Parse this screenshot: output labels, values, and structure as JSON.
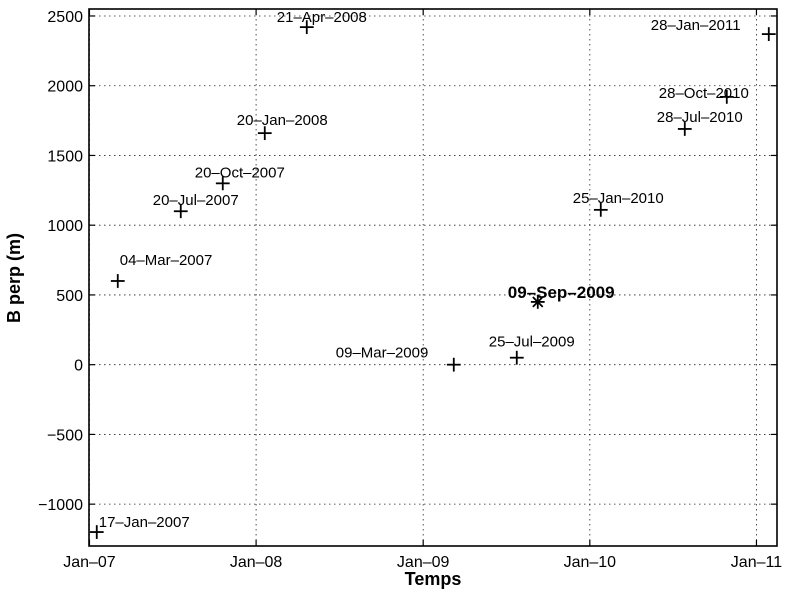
{
  "chart_data": {
    "type": "scatter",
    "title": "",
    "xlabel": "Temps",
    "ylabel": "B perp (m)",
    "xlim": [
      "2006-12-31",
      "2011-02-15"
    ],
    "ylim": [
      -1300,
      2550
    ],
    "grid": true,
    "x_ticks": [
      {
        "value": "2007-01-01",
        "label": "Jan–07"
      },
      {
        "value": "2008-01-01",
        "label": "Jan–08"
      },
      {
        "value": "2009-01-01",
        "label": "Jan–09"
      },
      {
        "value": "2010-01-01",
        "label": "Jan–10"
      },
      {
        "value": "2011-01-01",
        "label": "Jan–11"
      }
    ],
    "y_ticks": [
      {
        "value": -1000,
        "label": "−1000"
      },
      {
        "value": -500,
        "label": "−500"
      },
      {
        "value": 0,
        "label": "0"
      },
      {
        "value": 500,
        "label": "500"
      },
      {
        "value": 1000,
        "label": "1000"
      },
      {
        "value": 1500,
        "label": "1500"
      },
      {
        "value": 2000,
        "label": "2000"
      },
      {
        "value": 2500,
        "label": "2500"
      }
    ],
    "points": [
      {
        "date": "2007-01-17",
        "y": -1200,
        "label": "17–Jan–2007",
        "marker": "plus"
      },
      {
        "date": "2007-03-04",
        "y": 600,
        "label": "04–Mar–2007",
        "marker": "plus"
      },
      {
        "date": "2007-07-20",
        "y": 1100,
        "label": "20–Jul–2007",
        "marker": "plus"
      },
      {
        "date": "2007-10-20",
        "y": 1300,
        "label": "20–Oct–2007",
        "marker": "plus"
      },
      {
        "date": "2008-01-20",
        "y": 1660,
        "label": "20–Jan–2008",
        "marker": "plus"
      },
      {
        "date": "2008-04-21",
        "y": 2420,
        "label": "21–Apr–2008",
        "marker": "plus"
      },
      {
        "date": "2009-03-09",
        "y": 0,
        "label": "09–Mar–2009",
        "marker": "plus"
      },
      {
        "date": "2009-07-25",
        "y": 50,
        "label": "25–Jul–2009",
        "marker": "plus"
      },
      {
        "date": "2009-09-09",
        "y": 450,
        "label": "09–Sep–2009",
        "marker": "star",
        "emphasis": true
      },
      {
        "date": "2010-01-25",
        "y": 1110,
        "label": "25–Jan–2010",
        "marker": "plus"
      },
      {
        "date": "2010-07-28",
        "y": 1690,
        "label": "28–Jul–2010",
        "marker": "plus"
      },
      {
        "date": "2010-10-28",
        "y": 1920,
        "label": "28–Oct–2010",
        "marker": "plus"
      },
      {
        "date": "2011-01-28",
        "y": 2370,
        "label": "28–Jan–2011",
        "marker": "plus"
      }
    ]
  }
}
